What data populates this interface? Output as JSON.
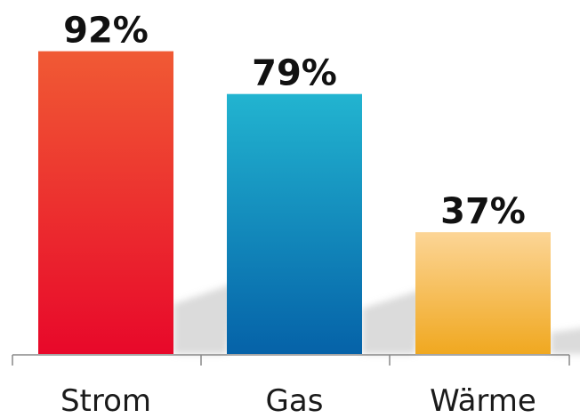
{
  "chart_data": {
    "type": "bar",
    "categories": [
      "Strom",
      "Gas",
      "Wärme"
    ],
    "values": [
      92,
      79,
      37
    ],
    "value_labels": [
      "92%",
      "79%",
      "37%"
    ],
    "unit": "%",
    "title": "",
    "xlabel": "",
    "ylabel": "",
    "ylim": [
      0,
      100
    ],
    "grid": false,
    "legend": "none",
    "bar_gradients": [
      {
        "top": "#f05a34",
        "bottom": "#e8082a"
      },
      {
        "top": "#22b4d0",
        "bottom": "#0562a8"
      },
      {
        "top": "#fcd596",
        "bottom": "#f0a820"
      }
    ],
    "axis_color": "#888888",
    "shadow_color": "#cfcfcf"
  }
}
